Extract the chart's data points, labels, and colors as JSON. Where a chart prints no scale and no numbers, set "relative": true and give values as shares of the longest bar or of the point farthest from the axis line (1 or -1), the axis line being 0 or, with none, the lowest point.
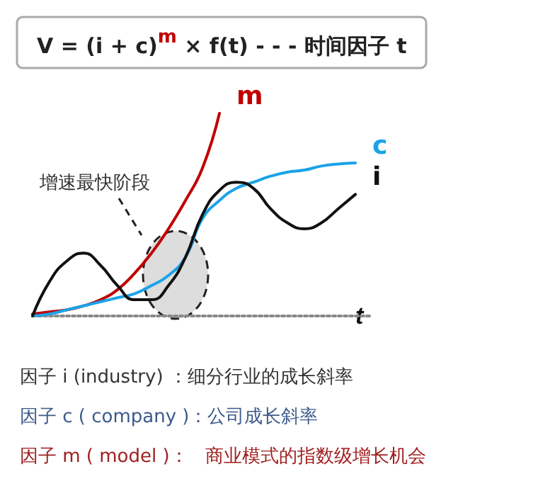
{
  "chart_data": {
    "type": "line",
    "relative": true,
    "title": "V = (i + c)$^{m}$ × f(t) - - - 时间因子 t",
    "xlabel": "t",
    "grid": false,
    "legend": false,
    "marker": "none",
    "line_style": "solid",
    "categories": [
      null,
      null,
      null,
      null,
      null,
      null,
      null,
      null,
      null,
      null,
      null,
      null,
      null,
      null,
      null,
      null,
      null,
      null,
      null,
      null,
      null
    ],
    "series": [
      {
        "name": "m",
        "color": "#c00000",
        "values": [
          0.01,
          0.02,
          0.03,
          0.05,
          0.08,
          0.13,
          0.21,
          0.31,
          0.43,
          0.57,
          0.73,
          1,
          null,
          null,
          null,
          null,
          null,
          null,
          null,
          null,
          null
        ]
      },
      {
        "name": "c",
        "color": "#1aa3e8",
        "values": [
          0,
          0.01,
          0.03,
          0.05,
          0.07,
          0.09,
          0.11,
          0.15,
          0.2,
          0.29,
          0.48,
          0.57,
          0.63,
          0.66,
          0.69,
          0.71,
          0.72,
          0.74,
          0.75,
          0.755,
          null
        ]
      },
      {
        "name": "i",
        "color": "#111111",
        "values": [
          0,
          0.17,
          0.27,
          0.31,
          0.25,
          0.15,
          0.08,
          0.08,
          0.15,
          0.29,
          0.5,
          0.62,
          0.66,
          0.63,
          0.53,
          0.46,
          0.43,
          0.46,
          0.53,
          0.6,
          null
        ]
      }
    ],
    "annotations": [
      "增速最快阶段",
      "因子 i (industry) ：细分行业的成长斜率",
      "因子 c ( company )：公司成长斜率",
      "因子 m ( model )：   商业模式的指数级增长机会"
    ]
  }
}
